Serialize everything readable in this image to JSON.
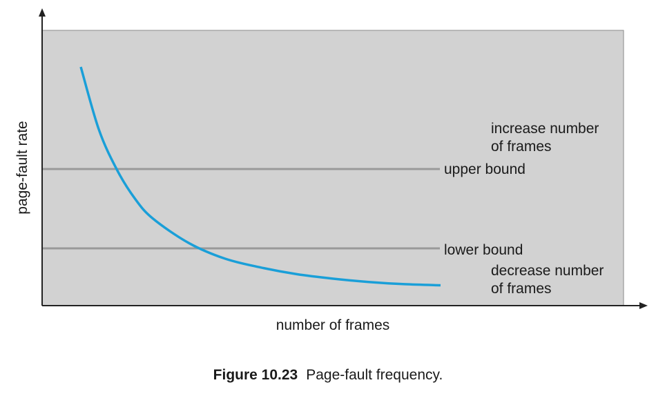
{
  "chart_data": {
    "type": "line",
    "xlabel": "number of frames",
    "ylabel": "page-fault rate",
    "grid": false,
    "series": [
      {
        "curve": "decreasing",
        "color": "#1a9fd8",
        "x": [
          0.0,
          0.05,
          0.1,
          0.15,
          0.2,
          0.3,
          0.4,
          0.5,
          0.6,
          0.7,
          0.8,
          0.9,
          1.0
        ],
        "y": [
          1.0,
          0.72,
          0.54,
          0.41,
          0.32,
          0.21,
          0.14,
          0.1,
          0.07,
          0.05,
          0.035,
          0.025,
          0.02
        ]
      }
    ],
    "thresholds": [
      {
        "label": "upper bound",
        "color": "#999999"
      },
      {
        "label": "lower bound",
        "color": "#999999"
      }
    ],
    "annotations": {
      "above": [
        "increase number",
        "of frames"
      ],
      "below": [
        "decrease number",
        "of frames"
      ]
    },
    "plot_background": "#d2d2d2"
  },
  "caption": {
    "number": "Figure 10.23",
    "text": "Page-fault frequency."
  }
}
